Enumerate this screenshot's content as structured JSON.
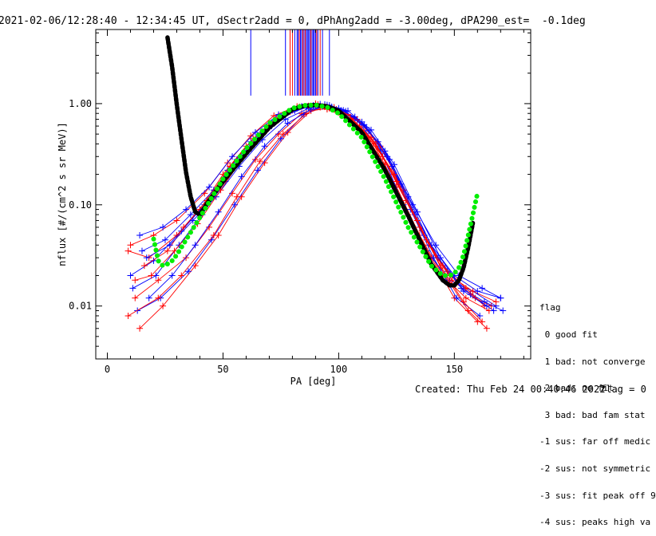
{
  "page": {
    "title": "2021-02-06/12:28:40 - 12:34:45 UT, dSectr2add = 0, dPhAng2add = -3.00deg, dPA290_est=  -0.1deg",
    "footer_created": "Created: Thu Feb 24 00:40:46 2022",
    "footer_flag": "flag = 0"
  },
  "legend": {
    "title": "flag",
    "items": [
      " 0 good fit",
      " 1 bad: not converge",
      " 2 bad: no fit",
      " 3 bad: bad fam stat",
      "-1 sus: far off medic",
      "-2 sus: not symmetric",
      "-3 sus: fit peak off 9",
      "-4 sus: peaks high va"
    ]
  },
  "chart_data": {
    "type": "line",
    "xlabel": "PA [deg]",
    "ylabel": "nflux [#/(cm^2 s sr MeV)]",
    "x_ticks": [
      "0",
      "50",
      "100",
      "150"
    ],
    "y_ticks": [
      "0.01",
      "0.10",
      "1.00"
    ],
    "xlim": [
      -5,
      183
    ],
    "ylim": [
      0.003,
      5.4
    ],
    "y_scale": "log",
    "colors": {
      "data_a": "#ff0000",
      "data_b": "#0000ff",
      "fit": "#000000",
      "model": "#00ee00"
    },
    "fit_curve": {
      "x": [
        26,
        28,
        30,
        32,
        34,
        36,
        38,
        40,
        44,
        50,
        60,
        70,
        80,
        85,
        90,
        95,
        100,
        110,
        120,
        130,
        140,
        145,
        148,
        150,
        152,
        154,
        156,
        158
      ],
      "y": [
        4.5,
        2.3,
        0.98,
        0.45,
        0.21,
        0.12,
        0.085,
        0.08,
        0.11,
        0.17,
        0.32,
        0.58,
        0.88,
        0.95,
        0.97,
        0.94,
        0.85,
        0.52,
        0.22,
        0.078,
        0.026,
        0.018,
        0.016,
        0.016,
        0.018,
        0.024,
        0.038,
        0.066
      ]
    },
    "model_curve": {
      "x": [
        20,
        22,
        24,
        26,
        28,
        30,
        34,
        40,
        50,
        60,
        70,
        80,
        85,
        90,
        95,
        100,
        110,
        120,
        130,
        140,
        145,
        148,
        150,
        152,
        154,
        156,
        158,
        160
      ],
      "y": [
        0.046,
        0.028,
        0.025,
        0.026,
        0.028,
        0.032,
        0.045,
        0.075,
        0.18,
        0.36,
        0.64,
        0.9,
        0.96,
        0.97,
        0.92,
        0.8,
        0.46,
        0.18,
        0.06,
        0.025,
        0.02,
        0.02,
        0.021,
        0.024,
        0.032,
        0.05,
        0.08,
        0.13
      ]
    },
    "vertical_lines": {
      "x": [
        62,
        77,
        79,
        80,
        81,
        82,
        82.5,
        83,
        83.5,
        84,
        84.5,
        85,
        85.5,
        86,
        86.5,
        87,
        87.5,
        88,
        88.5,
        89,
        89.5,
        90,
        90.5,
        91,
        92,
        93,
        96
      ],
      "y_bottom": 1.2
    },
    "series": [
      {
        "color": "data_a",
        "x": [
          9,
          18,
          30,
          40,
          50,
          60,
          70,
          80,
          88,
          95,
          105,
          115,
          125,
          135,
          145,
          155,
          165
        ],
        "y": [
          0.035,
          0.03,
          0.05,
          0.09,
          0.2,
          0.38,
          0.62,
          0.86,
          0.95,
          0.88,
          0.7,
          0.4,
          0.15,
          0.05,
          0.02,
          0.012,
          0.009
        ]
      },
      {
        "color": "data_b",
        "x": [
          10,
          20,
          32,
          42,
          52,
          62,
          72,
          82,
          90,
          98,
          108,
          118,
          128,
          138,
          148,
          158,
          168
        ],
        "y": [
          0.02,
          0.028,
          0.055,
          0.1,
          0.22,
          0.42,
          0.68,
          0.9,
          0.97,
          0.9,
          0.68,
          0.35,
          0.1,
          0.035,
          0.018,
          0.014,
          0.01
        ]
      },
      {
        "color": "data_a",
        "x": [
          12,
          22,
          34,
          44,
          54,
          64,
          74,
          84,
          92,
          100,
          110,
          120,
          130,
          140,
          150,
          160
        ],
        "y": [
          0.012,
          0.018,
          0.03,
          0.06,
          0.13,
          0.28,
          0.5,
          0.8,
          0.92,
          0.82,
          0.55,
          0.25,
          0.08,
          0.03,
          0.012,
          0.007
        ]
      },
      {
        "color": "data_b",
        "x": [
          15,
          25,
          36,
          46,
          56,
          66,
          76,
          86,
          94,
          102,
          112,
          122,
          132,
          142,
          152,
          162,
          170
        ],
        "y": [
          0.035,
          0.045,
          0.08,
          0.14,
          0.28,
          0.5,
          0.75,
          0.92,
          0.98,
          0.86,
          0.58,
          0.28,
          0.1,
          0.04,
          0.02,
          0.015,
          0.012
        ]
      },
      {
        "color": "data_a",
        "x": [
          14,
          24,
          38,
          48,
          58,
          68,
          78,
          88,
          96,
          106,
          116,
          126,
          136,
          146,
          156,
          164
        ],
        "y": [
          0.006,
          0.01,
          0.025,
          0.05,
          0.12,
          0.26,
          0.52,
          0.85,
          0.9,
          0.7,
          0.4,
          0.16,
          0.055,
          0.02,
          0.009,
          0.006
        ]
      },
      {
        "color": "data_b",
        "x": [
          11,
          21,
          31,
          41,
          51,
          61,
          71,
          81,
          89,
          97,
          107,
          117,
          127,
          137,
          147,
          157,
          167
        ],
        "y": [
          0.015,
          0.02,
          0.04,
          0.08,
          0.17,
          0.34,
          0.6,
          0.85,
          0.96,
          0.93,
          0.74,
          0.42,
          0.16,
          0.05,
          0.022,
          0.013,
          0.009
        ]
      },
      {
        "color": "data_a",
        "x": [
          16,
          26,
          33,
          43,
          53,
          63,
          73,
          83,
          91,
          99,
          109,
          119,
          129,
          139,
          149,
          159,
          166
        ],
        "y": [
          0.025,
          0.035,
          0.06,
          0.11,
          0.24,
          0.45,
          0.72,
          0.93,
          0.98,
          0.88,
          0.6,
          0.3,
          0.11,
          0.04,
          0.018,
          0.012,
          0.01
        ]
      },
      {
        "color": "data_b",
        "x": [
          13,
          23,
          35,
          45,
          55,
          65,
          75,
          85,
          93,
          101,
          111,
          121,
          131,
          141,
          151,
          161
        ],
        "y": [
          0.009,
          0.012,
          0.022,
          0.045,
          0.1,
          0.22,
          0.45,
          0.78,
          0.94,
          0.86,
          0.62,
          0.3,
          0.09,
          0.03,
          0.012,
          0.008
        ]
      },
      {
        "color": "data_a",
        "x": [
          10,
          20,
          30,
          42,
          52,
          62,
          72,
          82,
          90,
          98,
          108,
          118,
          128,
          138,
          148,
          158,
          168
        ],
        "y": [
          0.04,
          0.05,
          0.07,
          0.13,
          0.26,
          0.48,
          0.76,
          0.94,
          1.0,
          0.92,
          0.7,
          0.38,
          0.14,
          0.045,
          0.02,
          0.014,
          0.011
        ]
      },
      {
        "color": "data_b",
        "x": [
          17,
          27,
          37,
          47,
          57,
          67,
          77,
          87,
          95,
          103,
          113,
          123,
          133,
          143,
          153,
          163,
          171
        ],
        "y": [
          0.03,
          0.04,
          0.07,
          0.12,
          0.24,
          0.44,
          0.7,
          0.9,
          0.97,
          0.84,
          0.54,
          0.24,
          0.08,
          0.03,
          0.015,
          0.011,
          0.009
        ]
      },
      {
        "color": "data_a",
        "x": [
          12,
          19,
          29,
          39,
          49,
          59,
          69,
          79,
          87,
          95,
          105,
          115,
          125,
          135,
          145,
          155,
          163
        ],
        "y": [
          0.018,
          0.02,
          0.035,
          0.065,
          0.14,
          0.3,
          0.55,
          0.83,
          0.95,
          0.9,
          0.72,
          0.42,
          0.17,
          0.06,
          0.025,
          0.015,
          0.01
        ]
      },
      {
        "color": "data_b",
        "x": [
          14,
          24,
          34,
          44,
          54,
          64,
          74,
          84,
          92,
          100,
          110,
          120,
          130,
          140,
          150,
          160,
          170
        ],
        "y": [
          0.05,
          0.06,
          0.09,
          0.15,
          0.3,
          0.52,
          0.78,
          0.94,
          0.99,
          0.9,
          0.66,
          0.34,
          0.12,
          0.04,
          0.02,
          0.014,
          0.012
        ]
      },
      {
        "color": "data_a",
        "x": [
          9,
          22,
          32,
          46,
          56,
          66,
          76,
          86,
          94,
          104,
          114,
          124,
          134,
          144,
          154,
          162
        ],
        "y": [
          0.008,
          0.012,
          0.02,
          0.05,
          0.12,
          0.27,
          0.5,
          0.8,
          0.93,
          0.78,
          0.46,
          0.2,
          0.07,
          0.025,
          0.011,
          0.007
        ]
      },
      {
        "color": "data_b",
        "x": [
          18,
          28,
          38,
          48,
          58,
          68,
          78,
          88,
          96,
          104,
          114,
          124,
          134,
          144,
          154,
          164
        ],
        "y": [
          0.012,
          0.02,
          0.04,
          0.085,
          0.19,
          0.38,
          0.64,
          0.88,
          0.96,
          0.85,
          0.55,
          0.25,
          0.085,
          0.03,
          0.014,
          0.01
        ]
      }
    ]
  }
}
